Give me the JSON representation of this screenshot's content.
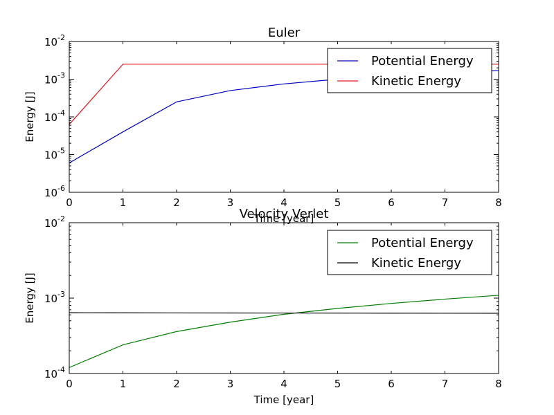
{
  "chart_data": [
    {
      "type": "line",
      "title": "Euler",
      "xlabel": "Time [year]",
      "ylabel": "Energy [J]",
      "yscale": "log",
      "xlim": [
        0,
        8
      ],
      "ylim": [
        1e-06,
        0.01
      ],
      "xticks": [
        "0",
        "1",
        "2",
        "3",
        "4",
        "5",
        "6",
        "7",
        "8"
      ],
      "yticks": [
        {
          "base": "10",
          "exp": "-6",
          "value": 1e-06
        },
        {
          "base": "10",
          "exp": "-5",
          "value": 1e-05
        },
        {
          "base": "10",
          "exp": "-4",
          "value": 0.0001
        },
        {
          "base": "10",
          "exp": "-3",
          "value": 0.001
        },
        {
          "base": "10",
          "exp": "-2",
          "value": 0.01
        }
      ],
      "grid": false,
      "legend_position": "top-right",
      "x": [
        0,
        1,
        2,
        3,
        4,
        5,
        6,
        7,
        8
      ],
      "series": [
        {
          "name": "Potential Energy",
          "color": "#0000bf",
          "values": [
            6e-06,
            4e-05,
            0.00025,
            0.0005,
            0.00075,
            0.001,
            0.0012,
            0.00145,
            0.0017
          ]
        },
        {
          "name": "Kinetic Energy",
          "color": "#e3161d",
          "values": [
            6.3e-05,
            0.0025,
            0.0025,
            0.0025,
            0.0025,
            0.0025,
            0.0025,
            0.0025,
            0.0025
          ]
        }
      ]
    },
    {
      "type": "line",
      "title": "Velocity Verlet",
      "xlabel": "Time [year]",
      "ylabel": "Energy [J]",
      "yscale": "log",
      "xlim": [
        0,
        8
      ],
      "ylim": [
        0.0001,
        0.01
      ],
      "xticks": [
        "0",
        "1",
        "2",
        "3",
        "4",
        "5",
        "6",
        "7",
        "8"
      ],
      "yticks": [
        {
          "base": "10",
          "exp": "-4",
          "value": 0.0001
        },
        {
          "base": "10",
          "exp": "-3",
          "value": 0.001
        },
        {
          "base": "10",
          "exp": "-2",
          "value": 0.01
        }
      ],
      "grid": false,
      "legend_position": "top-right",
      "x": [
        0,
        1,
        2,
        3,
        4,
        5,
        6,
        7,
        8
      ],
      "series": [
        {
          "name": "Potential Energy",
          "color": "#007f00",
          "values": [
            0.00012,
            0.00024,
            0.00036,
            0.00048,
            0.00061,
            0.00073,
            0.00085,
            0.00097,
            0.00109
          ]
        },
        {
          "name": "Kinetic Energy",
          "color": "#000000",
          "values": [
            0.00064,
            0.000638,
            0.000636,
            0.000635,
            0.000634,
            0.000633,
            0.000632,
            0.000631,
            0.00063
          ]
        }
      ]
    }
  ]
}
